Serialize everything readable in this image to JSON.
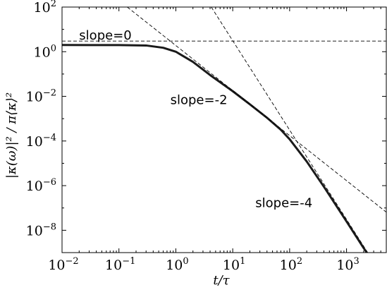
{
  "chart_data": {
    "type": "line",
    "title": "",
    "xlabel": "t/τ",
    "ylabel": "|κ(ω)|² / π⟨κ⟩²",
    "xscale": "log",
    "yscale": "log",
    "xlim": [
      0.01,
      5000
    ],
    "ylim": [
      1e-09,
      100
    ],
    "grid": false,
    "legend": "none",
    "x_ticks": [
      {
        "value": 0.01,
        "base": "10",
        "exp": "−2"
      },
      {
        "value": 0.1,
        "base": "10",
        "exp": "−1"
      },
      {
        "value": 1,
        "base": "10",
        "exp": "0"
      },
      {
        "value": 10,
        "base": "10",
        "exp": "1"
      },
      {
        "value": 100,
        "base": "10",
        "exp": "2"
      },
      {
        "value": 1000,
        "base": "10",
        "exp": "3"
      }
    ],
    "y_ticks": [
      {
        "value": 1e-08,
        "base": "10",
        "exp": "−8"
      },
      {
        "value": 1e-06,
        "base": "10",
        "exp": "−6"
      },
      {
        "value": 0.0001,
        "base": "10",
        "exp": "−4"
      },
      {
        "value": 0.01,
        "base": "10",
        "exp": "−2"
      },
      {
        "value": 1,
        "base": "10",
        "exp": "0"
      },
      {
        "value": 100,
        "base": "10",
        "exp": "2"
      }
    ],
    "series": [
      {
        "style": "solid",
        "color": "#1a1a1a",
        "points": [
          [
            0.01,
            2.0
          ],
          [
            0.1,
            1.98
          ],
          [
            0.3,
            1.9
          ],
          [
            0.6,
            1.5
          ],
          [
            1,
            1.0
          ],
          [
            2,
            0.35
          ],
          [
            4,
            0.09
          ],
          [
            10,
            0.017
          ],
          [
            20,
            0.0044
          ],
          [
            40,
            0.0011
          ],
          [
            70,
            0.00032
          ],
          [
            100,
            0.00012
          ],
          [
            200,
            1.2e-05
          ],
          [
            400,
            9e-07
          ],
          [
            1000,
            2.5e-08
          ],
          [
            2000,
            1.6e-09
          ],
          [
            2600,
            6e-10
          ]
        ]
      },
      {
        "style": "dashed",
        "color": "#000000",
        "points": [
          [
            0.01,
            3.0
          ],
          [
            5000,
            3.0
          ]
        ]
      },
      {
        "style": "dashed",
        "color": "#000000",
        "points": [
          [
            0.14,
            100
          ],
          [
            5000,
            6.5e-08
          ]
        ]
      },
      {
        "style": "dashed",
        "color": "#000000",
        "points": [
          [
            4.2,
            100
          ],
          [
            2600,
            6.7e-10
          ]
        ]
      }
    ],
    "annotations": [
      {
        "text": "slope=0",
        "x": 0.02,
        "y": 3.5
      },
      {
        "text": "slope=-2",
        "x": 0.8,
        "y": 0.0045
      },
      {
        "text": "slope=-4",
        "x": 25,
        "y": 1.1e-07
      }
    ]
  }
}
